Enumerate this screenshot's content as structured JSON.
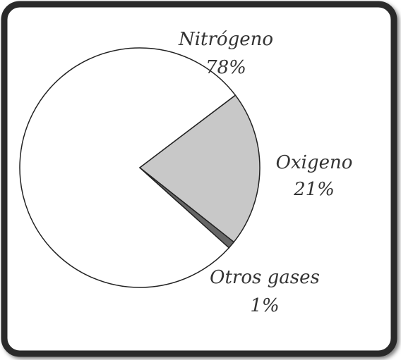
{
  "chart_data": {
    "type": "pie",
    "categories": [
      "Nitrógeno",
      "Oxigeno",
      "Otros gases"
    ],
    "values": [
      78,
      21,
      1
    ],
    "value_labels": [
      "78%",
      "21%",
      "1%"
    ],
    "colors": [
      "#ffffff",
      "#c8c8c8",
      "#666666"
    ]
  }
}
